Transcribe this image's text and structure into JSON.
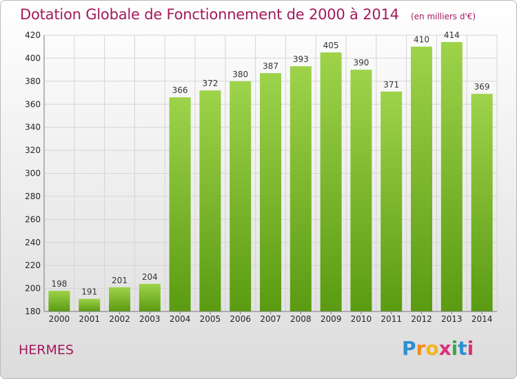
{
  "header": {
    "title": "Dotation Globale de Fonctionnement de 2000 à 2014",
    "unit_note": "(en milliers d'€)"
  },
  "footer": {
    "place": "HERMES",
    "logo_text": "Proxiti"
  },
  "chart_data": {
    "type": "bar",
    "title": "Dotation Globale de Fonctionnement de 2000 à 2014",
    "subtitle": "(en milliers d'€)",
    "categories": [
      "2000",
      "2001",
      "2002",
      "2003",
      "2004",
      "2005",
      "2006",
      "2007",
      "2008",
      "2009",
      "2010",
      "2011",
      "2012",
      "2013",
      "2014"
    ],
    "values": [
      198,
      191,
      201,
      204,
      366,
      372,
      380,
      387,
      393,
      405,
      390,
      371,
      410,
      414,
      369
    ],
    "ylim": [
      180,
      420
    ],
    "yticks": [
      180,
      200,
      220,
      240,
      260,
      280,
      300,
      320,
      340,
      360,
      380,
      400,
      420
    ],
    "grid": true,
    "legend": "none",
    "colors": {
      "bar_top": "#9ed34a",
      "bar_bottom": "#5a9b12",
      "grid": "#d4d4d4",
      "title": "#a3195b"
    }
  }
}
